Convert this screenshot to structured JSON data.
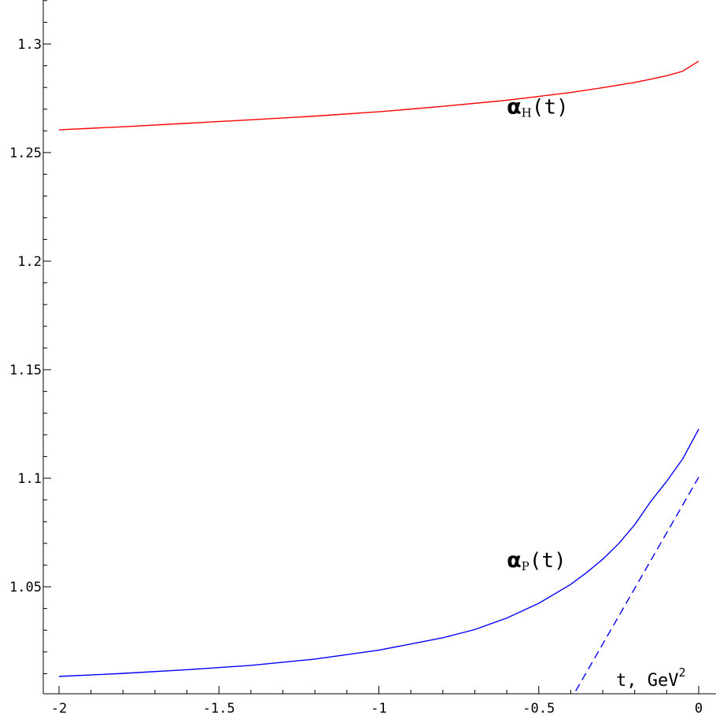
{
  "chart_data": {
    "type": "line",
    "title": "",
    "xlabel": "t, GeV",
    "xlabel_sup": "2",
    "ylabel": "",
    "xlim": [
      -2.05,
      0.05
    ],
    "ylim": [
      1.0,
      1.32
    ],
    "xticks": [
      -2,
      -1.5,
      -1,
      -0.5,
      0
    ],
    "xtick_labels": [
      "-2",
      "-1.5",
      "-1",
      "-0.5",
      "0"
    ],
    "yticks": [
      1.05,
      1.1,
      1.15,
      1.2,
      1.25,
      1.3
    ],
    "ytick_labels": [
      "1.05",
      "1.1",
      "1.15",
      "1.2",
      "1.25",
      "1.3"
    ],
    "grid": false,
    "series": [
      {
        "name": "αH(t)",
        "color": "#ff0000",
        "style": "solid",
        "x": [
          -2.0,
          -1.8,
          -1.6,
          -1.4,
          -1.2,
          -1.0,
          -0.8,
          -0.6,
          -0.5,
          -0.4,
          -0.3,
          -0.2,
          -0.15,
          -0.1,
          -0.05,
          0.0
        ],
        "y": [
          1.2605,
          1.2619,
          1.2635,
          1.2651,
          1.2668,
          1.2688,
          1.2713,
          1.2741,
          1.2759,
          1.2777,
          1.2799,
          1.2823,
          1.2838,
          1.2854,
          1.2875,
          1.2921
        ]
      },
      {
        "name": "αP(t)",
        "color": "#0000ff",
        "style": "solid",
        "x": [
          -2.0,
          -1.8,
          -1.6,
          -1.4,
          -1.2,
          -1.0,
          -0.8,
          -0.7,
          -0.6,
          -0.5,
          -0.4,
          -0.35,
          -0.3,
          -0.25,
          -0.2,
          -0.15,
          -0.1,
          -0.05,
          0.0
        ],
        "y": [
          1.0087,
          1.0101,
          1.0118,
          1.0138,
          1.0167,
          1.0208,
          1.0265,
          1.0303,
          1.0356,
          1.0424,
          1.0511,
          1.0566,
          1.0627,
          1.0699,
          1.0786,
          1.0893,
          1.0986,
          1.1089,
          1.1226
        ]
      },
      {
        "color": "#0000ff",
        "style": "dashed",
        "x": [
          -0.404,
          0.0
        ],
        "y": [
          0.997,
          1.1005
        ]
      }
    ],
    "annotations": [
      {
        "greek": "α",
        "sub": "H",
        "rest": "(t)",
        "x": -0.6,
        "y": 1.268
      },
      {
        "greek": "α",
        "sub": "P",
        "rest": "(t)",
        "x": -0.6,
        "y": 1.059
      }
    ]
  }
}
